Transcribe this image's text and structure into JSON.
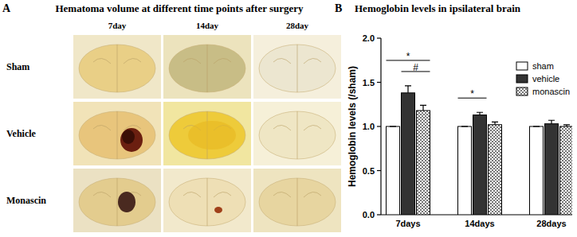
{
  "panel_a": {
    "label": "A",
    "title": "Hematoma volume at different time points after surgery",
    "columns": [
      "7day",
      "14day",
      "28day"
    ],
    "rows": [
      "Sham",
      "Vehicle",
      "Monascin"
    ]
  },
  "chart_data": {
    "type": "bar",
    "panel_label": "B",
    "title": "Hemoglobin levels in ipsilateral brain",
    "y_label": "Hemoglobin levels  (/sham)",
    "categories": [
      "7days",
      "14days",
      "28days"
    ],
    "series": [
      {
        "name": "sham",
        "color": "#ffffff",
        "values": [
          1.0,
          1.0,
          1.0
        ],
        "errors": [
          0,
          0,
          0
        ]
      },
      {
        "name": "vehicle",
        "color": "#333333",
        "values": [
          1.38,
          1.13,
          1.03
        ],
        "errors": [
          0.08,
          0.03,
          0.04
        ]
      },
      {
        "name": "monascin",
        "color": "#ffffff",
        "marker": "crosshatch",
        "values": [
          1.18,
          1.02,
          1.0
        ],
        "errors": [
          0.06,
          0.03,
          0.02
        ]
      }
    ],
    "annotations": [
      {
        "text": "#",
        "category": "7days",
        "between": [
          "vehicle",
          "monascin"
        ]
      },
      {
        "text": "*",
        "category": "7days",
        "between": [
          "sham",
          "monascin"
        ]
      },
      {
        "text": "*",
        "category": "14days",
        "between": [
          "sham",
          "vehicle"
        ]
      }
    ],
    "ylim": [
      0,
      2
    ],
    "yticks": [
      {
        "value": 0,
        "label": "0.0"
      },
      {
        "value": 0.5,
        "label": "0.5"
      },
      {
        "value": 1,
        "label": "1.0"
      },
      {
        "value": 1.5,
        "label": "1.5"
      },
      {
        "value": 2,
        "label": "2.0"
      }
    ],
    "legend": "upper-right"
  }
}
